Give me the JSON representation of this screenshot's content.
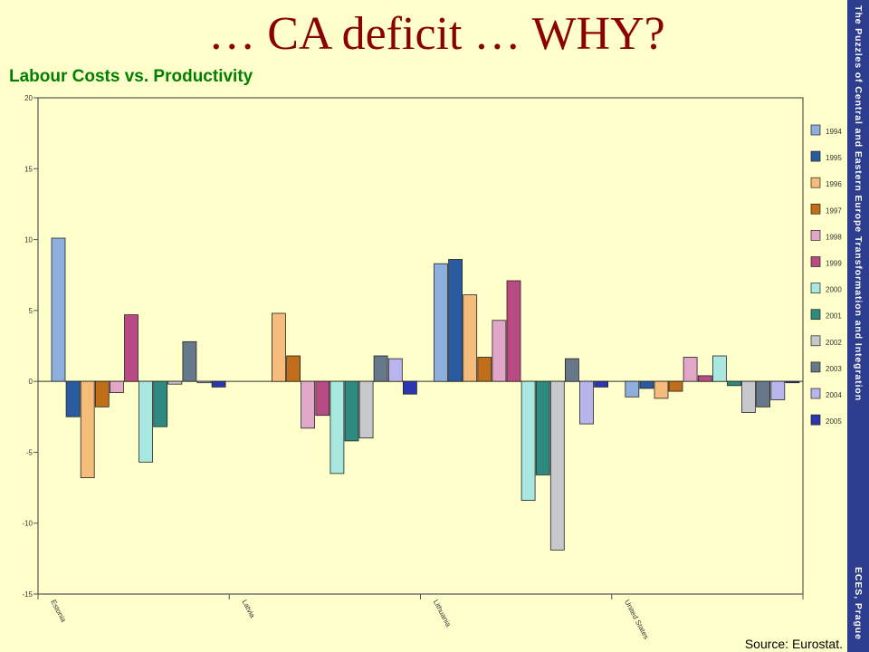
{
  "slide": {
    "title": "… CA deficit … WHY?",
    "subtitle": "Labour Costs vs. Productivity",
    "source": "Source: Eurostat.",
    "side_text_top": "The Puzzles of Central and Eastern Europe Transformation and Integration",
    "side_text_bottom": "ECES, Prague"
  },
  "colors": {
    "background": "#ffffcc",
    "title": "#8b0000",
    "subtitle": "#008000",
    "side_band": "#2e3e8e"
  },
  "chart_data": {
    "type": "bar",
    "title": "",
    "xlabel": "",
    "ylabel": "",
    "ylim": [
      -15,
      20
    ],
    "yticks": [
      20,
      15,
      10,
      5,
      0,
      -5,
      -10,
      -15
    ],
    "grid": false,
    "legend_position": "right",
    "categories": [
      "Estonia",
      "Latvia",
      "Lithuania",
      "United States"
    ],
    "series": [
      {
        "name": "1994",
        "color": "#8eaede",
        "values": [
          10.1,
          null,
          8.3,
          -1.1
        ]
      },
      {
        "name": "1995",
        "color": "#2a5aa0",
        "values": [
          -2.5,
          null,
          8.6,
          -0.5
        ]
      },
      {
        "name": "1996",
        "color": "#f6bc7c",
        "values": [
          -6.8,
          4.8,
          6.1,
          -1.2
        ]
      },
      {
        "name": "1997",
        "color": "#c06e1a",
        "values": [
          -1.8,
          1.8,
          1.7,
          -0.7
        ]
      },
      {
        "name": "1998",
        "color": "#e2a6c8",
        "values": [
          -0.8,
          -3.3,
          4.3,
          1.7
        ]
      },
      {
        "name": "1999",
        "color": "#b84a84",
        "values": [
          4.7,
          -2.4,
          7.1,
          0.4
        ]
      },
      {
        "name": "2000",
        "color": "#a8e8e0",
        "values": [
          -5.7,
          -6.5,
          -8.4,
          1.8
        ]
      },
      {
        "name": "2001",
        "color": "#2e8a80",
        "values": [
          -3.2,
          -4.2,
          -6.6,
          -0.3
        ]
      },
      {
        "name": "2002",
        "color": "#c6c8cc",
        "values": [
          -0.2,
          -4.0,
          -11.9,
          -2.2
        ]
      },
      {
        "name": "2003",
        "color": "#66788a",
        "values": [
          2.8,
          1.8,
          1.6,
          -1.8
        ]
      },
      {
        "name": "2004",
        "color": "#b8b4ee",
        "values": [
          -0.1,
          1.6,
          -3.0,
          -1.3
        ]
      },
      {
        "name": "2005",
        "color": "#2c36b0",
        "values": [
          -0.4,
          -0.9,
          -0.4,
          -0.1
        ]
      }
    ]
  }
}
